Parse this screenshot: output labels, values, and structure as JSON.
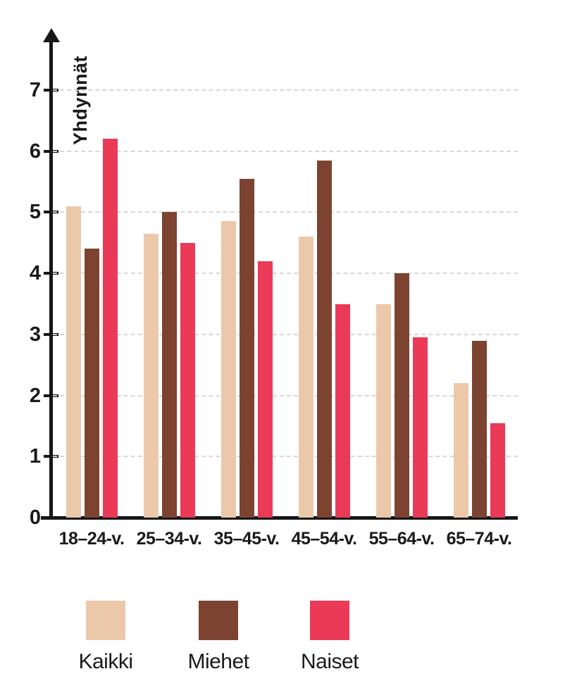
{
  "chart_data": {
    "type": "bar",
    "title": "",
    "ylabel": "Yhdynnät",
    "xlabel": "",
    "ylim": [
      0,
      7
    ],
    "yticks": [
      0,
      1,
      2,
      3,
      4,
      5,
      6,
      7
    ],
    "grid": "dashed-horizontal",
    "legend_position": "bottom",
    "categories": [
      "18–24-v.",
      "25–34-v.",
      "35–45-v.",
      "45–54-v.",
      "55–64-v.",
      "65–74-v."
    ],
    "series": [
      {
        "name": "Kaikki",
        "color": "#ecc8ab",
        "values": [
          5.1,
          4.65,
          4.85,
          4.6,
          3.5,
          2.2
        ]
      },
      {
        "name": "Miehet",
        "color": "#7c4331",
        "values": [
          4.4,
          5.0,
          5.55,
          5.85,
          4.0,
          2.9
        ]
      },
      {
        "name": "Naiset",
        "color": "#ea3a58",
        "values": [
          6.2,
          4.5,
          4.2,
          3.5,
          2.95,
          1.55
        ]
      }
    ]
  }
}
